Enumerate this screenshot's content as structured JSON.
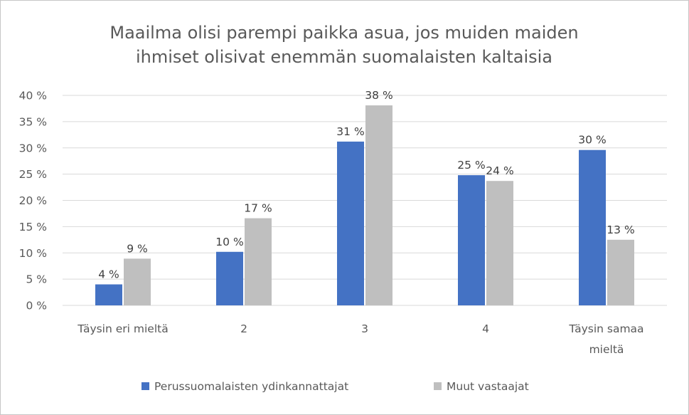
{
  "chart_data": {
    "type": "bar",
    "title": "Maailma olisi parempi paikka asua, jos muiden maiden ihmiset olisivat enemmän suomalaisten kaltaisia",
    "title_lines": [
      "Maailma olisi parempi paikka asua, jos muiden maiden",
      "ihmiset olisivat enemmän suomalaisten kaltaisia"
    ],
    "categories": [
      "Täysin eri mieltä",
      "2",
      "3",
      "4",
      "Täysin samaa mieltä"
    ],
    "category_lines": [
      [
        "Täysin eri mieltä"
      ],
      [
        "2"
      ],
      [
        "3"
      ],
      [
        "4"
      ],
      [
        "Täysin samaa",
        "mieltä"
      ]
    ],
    "series": [
      {
        "name": "Perussuomalaisten ydinkannattajat",
        "color": "#4472c4",
        "values": [
          4,
          10,
          31,
          25,
          30
        ],
        "value_labels": [
          "4 %",
          "10 %",
          "31 %",
          "25 %",
          "30 %"
        ],
        "bar_values": [
          4.0,
          10.2,
          31.2,
          24.8,
          29.6
        ]
      },
      {
        "name": "Muut vastaajat",
        "color": "#bfbfbf",
        "values": [
          9,
          17,
          38,
          24,
          13
        ],
        "value_labels": [
          "9 %",
          "17 %",
          "38 %",
          "24 %",
          "13 %"
        ],
        "bar_values": [
          8.9,
          16.6,
          38.1,
          23.7,
          12.5
        ]
      }
    ],
    "ylim": [
      0,
      40
    ],
    "yticks": [
      0,
      5,
      10,
      15,
      20,
      25,
      30,
      35,
      40
    ],
    "ytick_labels": [
      "0 %",
      "5 %",
      "10 %",
      "15 %",
      "20 %",
      "25 %",
      "30 %",
      "35 %",
      "40 %"
    ],
    "xlabel": "",
    "ylabel": "",
    "grid": true,
    "legend_position": "bottom"
  }
}
